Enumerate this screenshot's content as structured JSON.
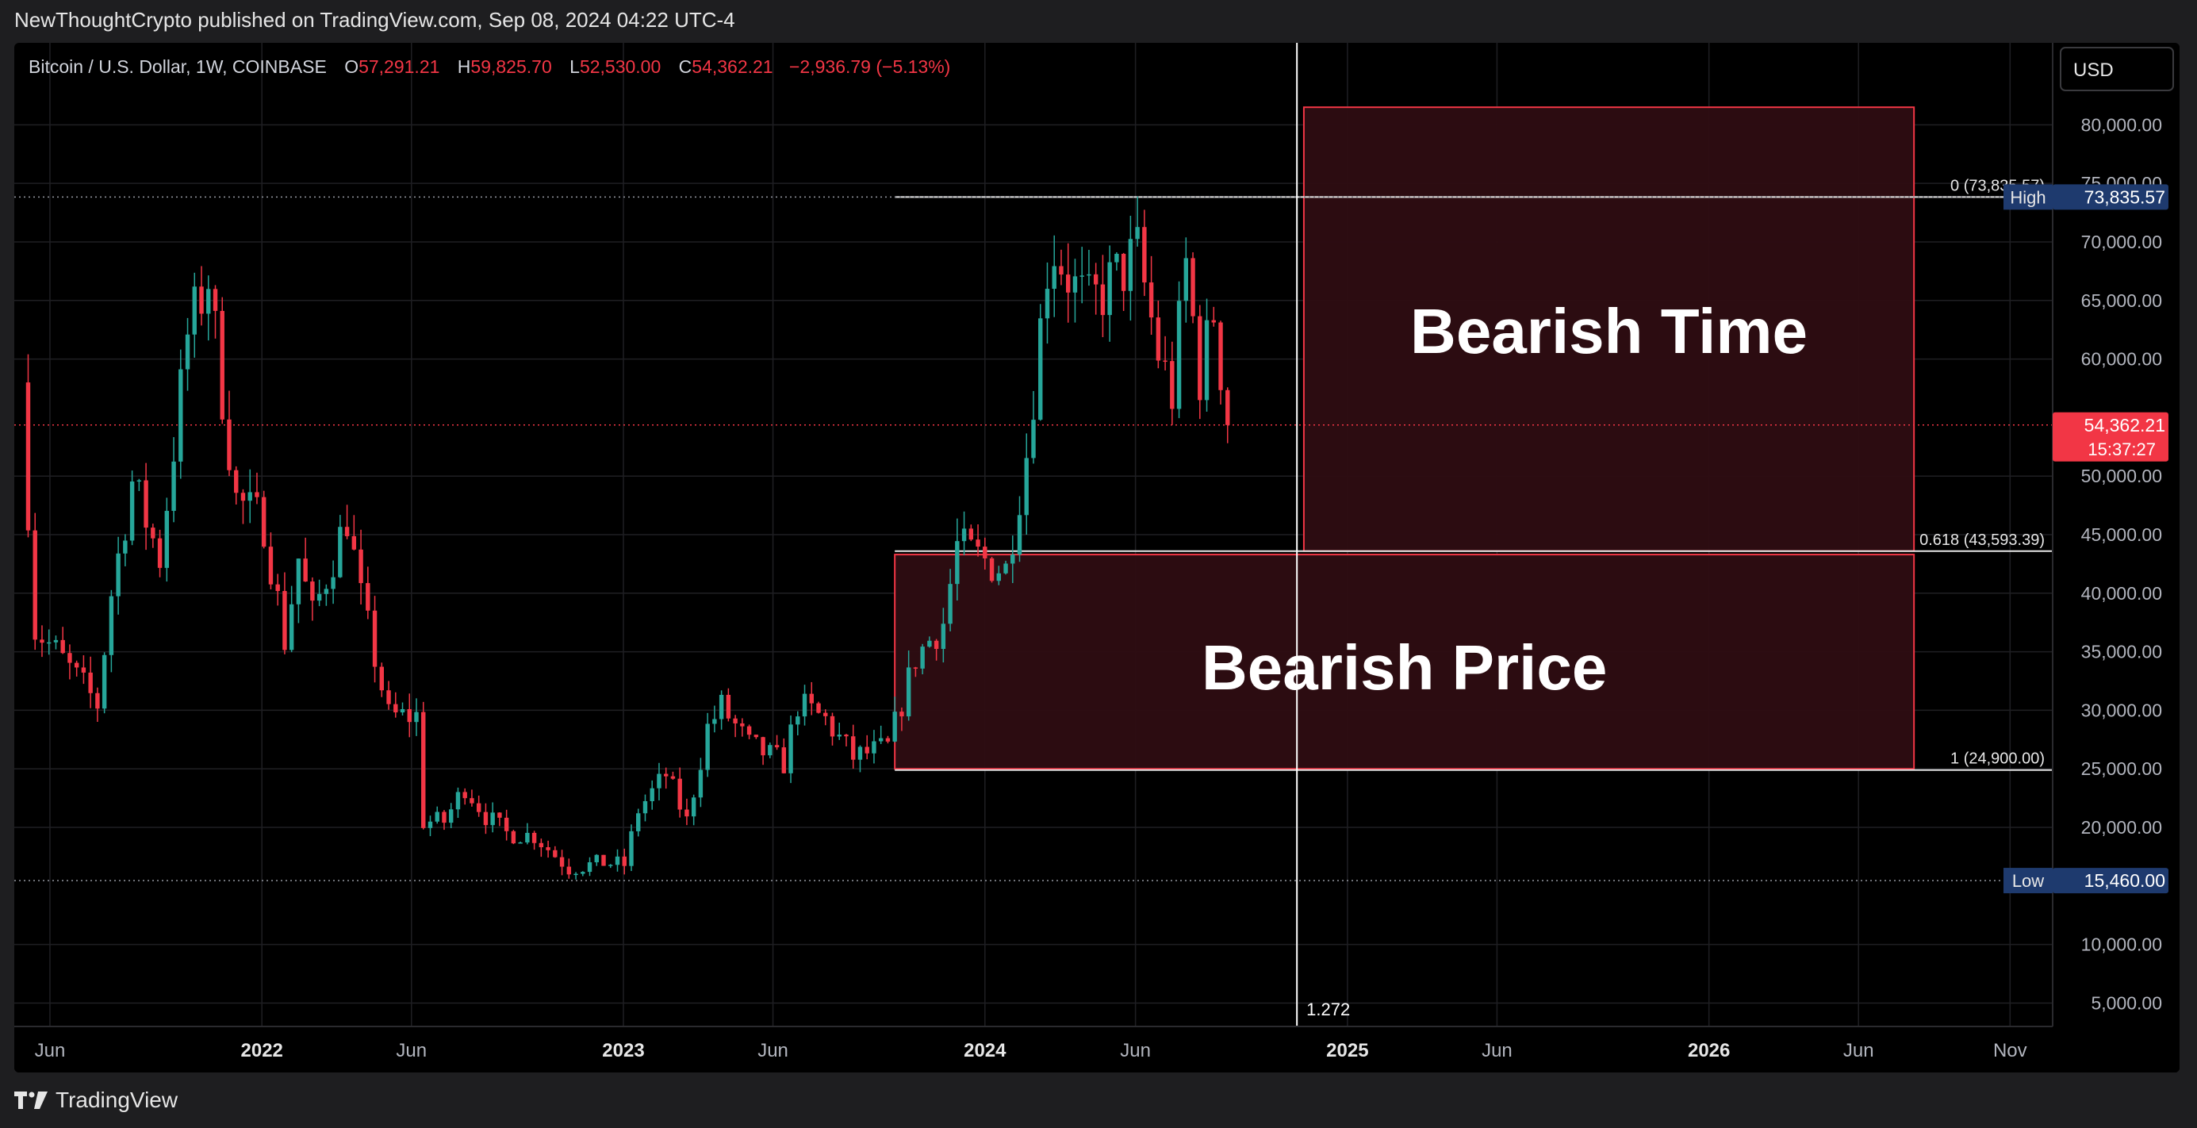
{
  "publisher_line": "NewThoughtCrypto published on TradingView.com, Sep 08, 2024 04:22 UTC-4",
  "footer": {
    "brand": "TradingView",
    "logo_icon": "tradingview-logo-icon"
  },
  "legend": {
    "symbol": "Bitcoin / U.S. Dollar, 1W, COINBASE",
    "o_label": "O",
    "o_value": "57,291.21",
    "h_label": "H",
    "h_value": "59,825.70",
    "l_label": "L",
    "l_value": "52,530.00",
    "c_label": "C",
    "c_value": "54,362.21",
    "change": "−2,936.79 (−5.13%)"
  },
  "currency_button": "USD",
  "colors": {
    "up": "#26a69a",
    "down": "#f23645",
    "zone_border": "#f23645",
    "zone_fill": "#2e0d12",
    "badge_blue": "#1e3a6e",
    "badge_red": "#f23645"
  },
  "chart_data": {
    "type": "candlestick",
    "symbol": "Bitcoin / U.S. Dollar",
    "interval": "1W",
    "exchange": "COINBASE",
    "x_range": [
      "2021-04-26",
      "2026-12-14"
    ],
    "y_range": [
      3000,
      87000
    ],
    "y_ticks": [
      "80,000.00",
      "75,000.00",
      "70,000.00",
      "65,000.00",
      "60,000.00",
      "50,000.00",
      "45,000.00",
      "40,000.00",
      "35,000.00",
      "30,000.00",
      "25,000.00",
      "20,000.00",
      "10,000.00",
      "5,000.00"
    ],
    "y_tick_values": [
      80000,
      75000,
      70000,
      65000,
      60000,
      50000,
      45000,
      40000,
      35000,
      30000,
      25000,
      20000,
      10000,
      5000
    ],
    "x_ticks": [
      {
        "label": "Jun",
        "date": "2021-06-01",
        "bold": false
      },
      {
        "label": "2022",
        "date": "2022-01-01",
        "bold": true
      },
      {
        "label": "Jun",
        "date": "2022-06-01",
        "bold": false
      },
      {
        "label": "2023",
        "date": "2023-01-01",
        "bold": true
      },
      {
        "label": "Jun",
        "date": "2023-06-01",
        "bold": false
      },
      {
        "label": "2024",
        "date": "2024-01-01",
        "bold": true
      },
      {
        "label": "Jun",
        "date": "2024-06-01",
        "bold": false
      },
      {
        "label": "2025",
        "date": "2025-01-01",
        "bold": true
      },
      {
        "label": "Jun",
        "date": "2025-06-01",
        "bold": false
      },
      {
        "label": "2026",
        "date": "2026-01-01",
        "bold": true
      },
      {
        "label": "Jun",
        "date": "2026-06-01",
        "bold": false
      },
      {
        "label": "Nov",
        "date": "2026-11-01",
        "bold": false
      }
    ],
    "price_path": [
      [
        "2021-05-03",
        58000
      ],
      [
        "2021-05-17",
        37000
      ],
      [
        "2021-06-07",
        35000
      ],
      [
        "2021-07-19",
        30500
      ],
      [
        "2021-08-02",
        40000
      ],
      [
        "2021-08-23",
        49500
      ],
      [
        "2021-09-20",
        43000
      ],
      [
        "2021-10-18",
        62000
      ],
      [
        "2021-11-08",
        67000
      ],
      [
        "2021-11-22",
        57000
      ],
      [
        "2021-12-06",
        48000
      ],
      [
        "2022-01-03",
        46000
      ],
      [
        "2022-01-24",
        36000
      ],
      [
        "2022-02-07",
        43000
      ],
      [
        "2022-02-21",
        38000
      ],
      [
        "2022-03-28",
        46500
      ],
      [
        "2022-04-11",
        39500
      ],
      [
        "2022-05-09",
        29500
      ],
      [
        "2022-06-06",
        29500
      ],
      [
        "2022-06-13",
        20500
      ],
      [
        "2022-07-04",
        20500
      ],
      [
        "2022-07-25",
        23500
      ],
      [
        "2022-08-15",
        21000
      ],
      [
        "2022-09-05",
        19500
      ],
      [
        "2022-10-03",
        19300
      ],
      [
        "2022-11-07",
        16500
      ],
      [
        "2022-12-12",
        17000
      ],
      [
        "2023-01-02",
        16800
      ],
      [
        "2023-01-16",
        21500
      ],
      [
        "2023-02-13",
        24500
      ],
      [
        "2023-03-06",
        20500
      ],
      [
        "2023-03-27",
        28500
      ],
      [
        "2023-04-10",
        30300
      ],
      [
        "2023-05-08",
        27000
      ],
      [
        "2023-06-12",
        25500
      ],
      [
        "2023-06-26",
        30500
      ],
      [
        "2023-07-24",
        29200
      ],
      [
        "2023-08-21",
        26000
      ],
      [
        "2023-09-25",
        26800
      ],
      [
        "2023-10-23",
        34500
      ],
      [
        "2023-11-20",
        37500
      ],
      [
        "2023-12-04",
        44000
      ],
      [
        "2024-01-08",
        42500
      ],
      [
        "2024-01-22",
        42000
      ],
      [
        "2024-02-12",
        52000
      ],
      [
        "2024-03-04",
        68000
      ],
      [
        "2024-03-11",
        69500
      ],
      [
        "2024-04-01",
        66000
      ],
      [
        "2024-04-15",
        64500
      ],
      [
        "2024-05-13",
        67000
      ],
      [
        "2024-06-03",
        69000
      ],
      [
        "2024-06-24",
        60500
      ],
      [
        "2024-07-08",
        57000
      ],
      [
        "2024-07-22",
        68000
      ],
      [
        "2024-08-05",
        58500
      ],
      [
        "2024-08-19",
        64000
      ],
      [
        "2024-09-02",
        54362
      ]
    ],
    "high_marker": {
      "label": "High",
      "value": "73,835.57",
      "price": 73835.57
    },
    "low_marker": {
      "label": "Low",
      "value": "15,460.00",
      "price": 15460
    },
    "last_price": {
      "value": "54,362.21",
      "countdown": "15:37:27",
      "price": 54362.21
    },
    "fib_levels": [
      {
        "label": "0 (73,835.57)",
        "price": 73835.57
      },
      {
        "label": "0.618 (43,593.39)",
        "price": 43593.39
      },
      {
        "label": "1 (24,900.00)",
        "price": 24900
      }
    ],
    "vertical_marker": {
      "label": "1.272",
      "date": "2024-11-11"
    },
    "zones": [
      {
        "label": "Bearish Time",
        "x_start": "2024-11-18",
        "x_end": "2026-07-27",
        "y_top": 81500,
        "y_bottom": 43600
      },
      {
        "label": "Bearish Price",
        "x_start": "2023-10-02",
        "x_end": "2026-07-27",
        "y_top": 43300,
        "y_bottom": 25000
      }
    ]
  }
}
